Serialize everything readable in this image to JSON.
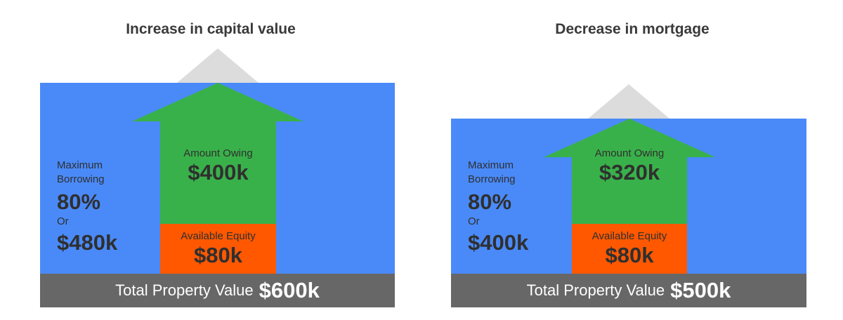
{
  "panels": [
    {
      "title": "Increase in capital value",
      "side": {
        "line1": "Maximum",
        "line2": "Borrowing",
        "percent": "80%",
        "or": "Or",
        "amount": "$480k"
      },
      "owing": {
        "label": "Amount Owing",
        "value": "$400k"
      },
      "equity": {
        "label": "Available Equity",
        "value": "$80k"
      },
      "footer": {
        "label": "Total Property Value",
        "value": "$600k"
      }
    },
    {
      "title": "Decrease in mortgage",
      "side": {
        "line1": "Maximum",
        "line2": "Borrowing",
        "percent": "80%",
        "or": "Or",
        "amount": "$400k"
      },
      "owing": {
        "label": "Amount Owing",
        "value": "$320k"
      },
      "equity": {
        "label": "Available Equity",
        "value": "$80k"
      },
      "footer": {
        "label": "Total Property Value",
        "value": "$500k"
      }
    }
  ],
  "colors": {
    "background_blue": "#4a8af8",
    "arrow_green": "#39b14a",
    "equity_orange": "#ff5800",
    "roof_grey": "#dcdcdc",
    "footer_grey": "#676767"
  }
}
